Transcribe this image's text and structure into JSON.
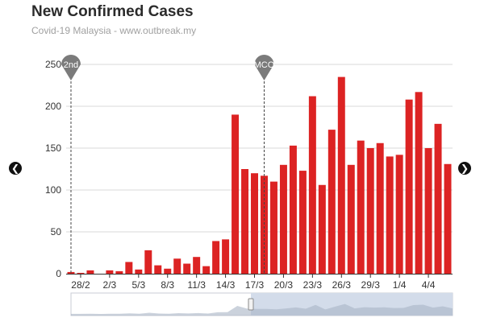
{
  "header": {
    "title": "New Confirmed Cases",
    "subtitle": "Covid-19 Malaysia - www.outbreak.my"
  },
  "nav": {
    "prev_icon": "chevron-left-icon",
    "next_icon": "chevron-right-icon"
  },
  "colors": {
    "bar": "#dc2323",
    "grid": "#d9d9d9",
    "marker": "#7b7b7b",
    "navigator": "#d3dcea"
  },
  "chart_data": {
    "type": "bar",
    "title": "New Confirmed Cases",
    "subtitle": "Covid-19 Malaysia - www.outbreak.my",
    "xlabel": "",
    "ylabel": "",
    "ylim": [
      0,
      250
    ],
    "yticks": [
      0,
      50,
      100,
      150,
      200,
      250
    ],
    "grid": true,
    "x_tick_labels": [
      "28/2",
      "2/3",
      "5/3",
      "8/3",
      "11/3",
      "14/3",
      "17/3",
      "20/3",
      "23/3",
      "26/3",
      "29/3",
      "1/4",
      "4/4"
    ],
    "x_tick_every": 3,
    "x_tick_offset": 1,
    "values": [
      2,
      1,
      4,
      0,
      4,
      3,
      14,
      5,
      28,
      10,
      6,
      18,
      12,
      20,
      9,
      39,
      41,
      190,
      125,
      120,
      117,
      110,
      130,
      153,
      123,
      212,
      106,
      172,
      235,
      130,
      159,
      150,
      156,
      140,
      142,
      208,
      217,
      150,
      179,
      131
    ],
    "annotations": [
      {
        "label": "2nd",
        "index": 0
      },
      {
        "label": "MCO",
        "index": 20
      }
    ]
  }
}
